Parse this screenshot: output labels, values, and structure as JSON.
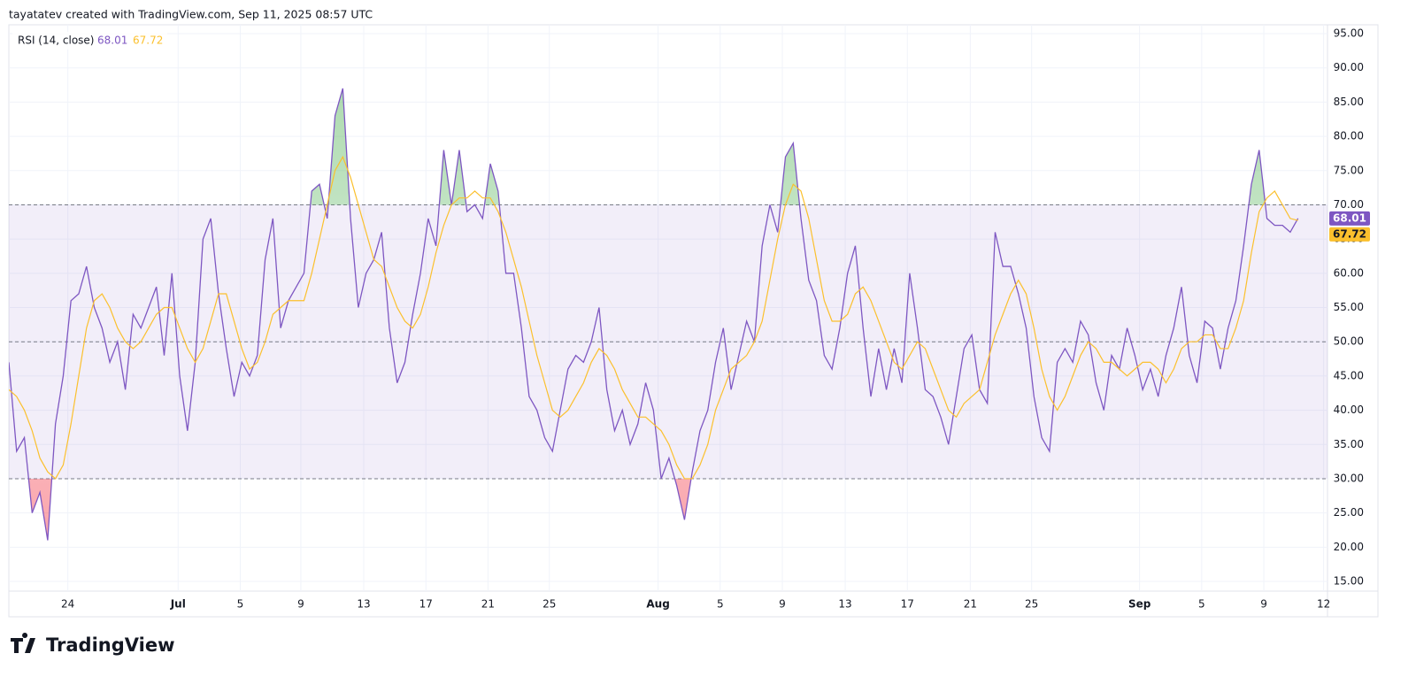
{
  "header": "tayatatev created with TradingView.com, Sep 11, 2025 08:57 UTC",
  "logo": "TradingView",
  "chart_data": {
    "type": "line",
    "legend_title": "RSI (14, close)",
    "series": [
      {
        "name": "RSI (14, close)",
        "color": "#7e57c2",
        "values": [
          47,
          34,
          36,
          25,
          28,
          21,
          38,
          45,
          56,
          57,
          61,
          55,
          52,
          47,
          50,
          43,
          54,
          52,
          55,
          58,
          48,
          60,
          45,
          37,
          47,
          65,
          68,
          57,
          49,
          42,
          47,
          45,
          48,
          62,
          68,
          52,
          56,
          58,
          60,
          72,
          73,
          68,
          83,
          87,
          68,
          55,
          60,
          62,
          66,
          52,
          44,
          47,
          54,
          60,
          68,
          64,
          78,
          70,
          78,
          69,
          70,
          68,
          76,
          72,
          60,
          60,
          52,
          42,
          40,
          36,
          34,
          40,
          46,
          48,
          47,
          50,
          55,
          43,
          37,
          40,
          35,
          38,
          44,
          40,
          30,
          33,
          29,
          24,
          31,
          37,
          40,
          47,
          52,
          43,
          48,
          53,
          50,
          64,
          70,
          66,
          77,
          79,
          68,
          59,
          56,
          48,
          46,
          52,
          60,
          64,
          52,
          42,
          49,
          43,
          49,
          44,
          60,
          52,
          43,
          42,
          39,
          35,
          42,
          49,
          51,
          43,
          41,
          66,
          61,
          61,
          57,
          52,
          42,
          36,
          34,
          47,
          49,
          47,
          53,
          51,
          44,
          40,
          48,
          46,
          52,
          48,
          43,
          46,
          42,
          48,
          52,
          58,
          48,
          44,
          53,
          52,
          46,
          52,
          56,
          64,
          73,
          78,
          68,
          67,
          67,
          66,
          68.01
        ]
      },
      {
        "color": "#fbc02d",
        "values": [
          43,
          42,
          40,
          37,
          33,
          31,
          30,
          32,
          38,
          45,
          52,
          56,
          57,
          55,
          52,
          50,
          49,
          50,
          52,
          54,
          55,
          55,
          52,
          49,
          47,
          49,
          53,
          57,
          57,
          53,
          49,
          46,
          47,
          50,
          54,
          55,
          56,
          56,
          56,
          60,
          65,
          70,
          75,
          77,
          74,
          70,
          66,
          62,
          61,
          58,
          55,
          53,
          52,
          54,
          58,
          63,
          67,
          70,
          71,
          71,
          72,
          71,
          71,
          69,
          66,
          62,
          58,
          53,
          48,
          44,
          40,
          39,
          40,
          42,
          44,
          47,
          49,
          48,
          46,
          43,
          41,
          39,
          39,
          38,
          37,
          35,
          32,
          30,
          30,
          32,
          35,
          40,
          43,
          46,
          47,
          48,
          50,
          53,
          59,
          65,
          70,
          73,
          72,
          68,
          62,
          56,
          53,
          53,
          54,
          57,
          58,
          56,
          53,
          50,
          47,
          46,
          48,
          50,
          49,
          46,
          43,
          40,
          39,
          41,
          42,
          43,
          47,
          51,
          54,
          57,
          59,
          57,
          52,
          46,
          42,
          40,
          42,
          45,
          48,
          50,
          49,
          47,
          47,
          46,
          45,
          46,
          47,
          47,
          46,
          44,
          46,
          49,
          50,
          50,
          51,
          51,
          49,
          49,
          52,
          56,
          63,
          69,
          71,
          72,
          70,
          68,
          67.72
        ]
      }
    ],
    "levels": {
      "upper": 70,
      "middle": 50,
      "lower": 30
    },
    "ylim": [
      15,
      95
    ],
    "yticks": [
      {
        "value": 15,
        "label": "15.00"
      },
      {
        "value": 20,
        "label": "20.00"
      },
      {
        "value": 25,
        "label": "25.00"
      },
      {
        "value": 30,
        "label": "30.00"
      },
      {
        "value": 35,
        "label": "35.00"
      },
      {
        "value": 40,
        "label": "40.00"
      },
      {
        "value": 45,
        "label": "45.00"
      },
      {
        "value": 50,
        "label": "50.00"
      },
      {
        "value": 55,
        "label": "55.00"
      },
      {
        "value": 60,
        "label": "60.00"
      },
      {
        "value": 65,
        "label": "65.00"
      },
      {
        "value": 70,
        "label": "70.00"
      },
      {
        "value": 75,
        "label": "75.00"
      },
      {
        "value": 80,
        "label": "80.00"
      },
      {
        "value": 85,
        "label": "85.00"
      },
      {
        "value": 90,
        "label": "90.00"
      },
      {
        "value": 95,
        "label": "95.00"
      }
    ],
    "xlim": [
      0,
      169.8
    ],
    "xticks": [
      {
        "value": 7.6,
        "label": "24"
      },
      {
        "value": 21.8,
        "label": "Jul"
      },
      {
        "value": 29.8,
        "label": "5"
      },
      {
        "value": 37.6,
        "label": "9"
      },
      {
        "value": 45.7,
        "label": "13"
      },
      {
        "value": 53.7,
        "label": "17"
      },
      {
        "value": 61.7,
        "label": "21"
      },
      {
        "value": 69.6,
        "label": "25"
      },
      {
        "value": 83.6,
        "label": "Aug"
      },
      {
        "value": 91.6,
        "label": "5"
      },
      {
        "value": 99.6,
        "label": "9"
      },
      {
        "value": 107.7,
        "label": "13"
      },
      {
        "value": 115.7,
        "label": "17"
      },
      {
        "value": 123.8,
        "label": "21"
      },
      {
        "value": 131.7,
        "label": "25"
      },
      {
        "value": 145.6,
        "label": "Sep"
      },
      {
        "value": 153.6,
        "label": "5"
      },
      {
        "value": 161.6,
        "label": "9"
      },
      {
        "value": 169.3,
        "label": "12"
      }
    ],
    "grid": true
  }
}
